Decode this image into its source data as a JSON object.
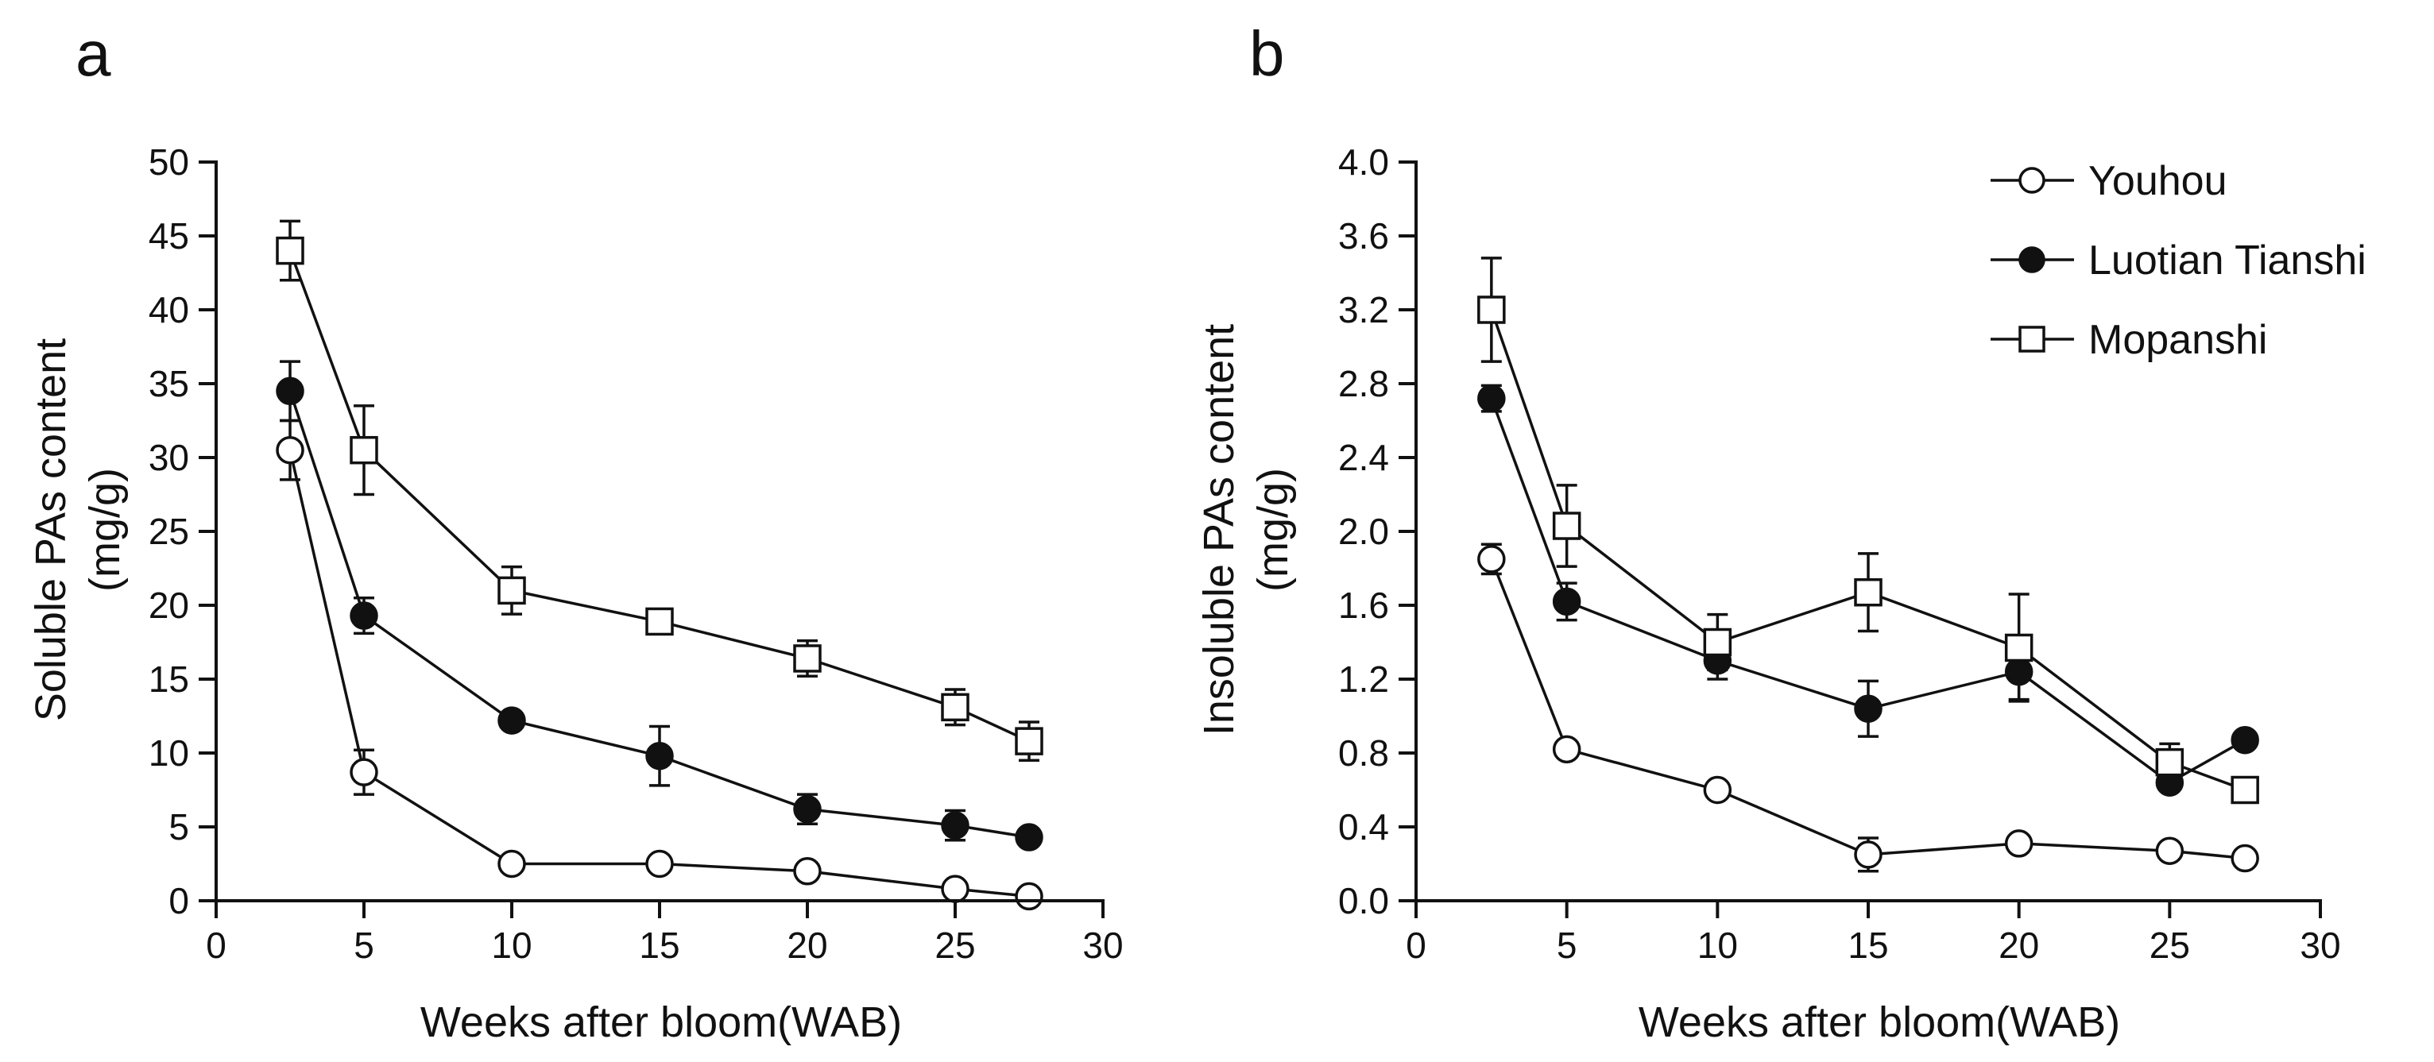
{
  "chart_data": [
    {
      "panel_label": "a",
      "type": "line",
      "xlabel": "Weeks after bloom(WAB)",
      "ylabel_lines": [
        "Soluble PAs content",
        "(mg/g)"
      ],
      "xlim": [
        0,
        30
      ],
      "ylim": [
        0,
        50
      ],
      "x_ticks": [
        0,
        5,
        10,
        15,
        20,
        25,
        30
      ],
      "y_ticks": [
        0,
        5,
        10,
        15,
        20,
        25,
        30,
        35,
        40,
        45,
        50
      ],
      "y_decimals": 0,
      "x": [
        2.5,
        5,
        10,
        15,
        20,
        25,
        27.5
      ],
      "series": [
        {
          "name": "Youhou",
          "marker": "open-circle",
          "values": [
            30.5,
            8.7,
            2.5,
            2.5,
            2.0,
            0.8,
            0.3
          ],
          "errors": [
            2.0,
            1.5,
            0.3,
            0.3,
            0.3,
            0.3,
            0.2
          ]
        },
        {
          "name": "Luotian Tianshi",
          "marker": "filled-circle",
          "values": [
            34.5,
            19.3,
            12.2,
            9.8,
            6.2,
            5.1,
            4.3
          ],
          "errors": [
            2.0,
            1.2,
            0.5,
            2.0,
            1.0,
            1.0,
            0.3
          ]
        },
        {
          "name": "Mopanshi",
          "marker": "open-square",
          "values": [
            44.0,
            30.5,
            21.0,
            18.9,
            16.4,
            13.1,
            10.8
          ],
          "errors": [
            2.0,
            3.0,
            1.6,
            0.6,
            1.2,
            1.2,
            1.3
          ]
        }
      ]
    },
    {
      "panel_label": "b",
      "type": "line",
      "xlabel": "Weeks after bloom(WAB)",
      "ylabel_lines": [
        "Insoluble PAs content",
        "(mg/g)"
      ],
      "xlim": [
        0,
        30
      ],
      "ylim": [
        0,
        4.0
      ],
      "x_ticks": [
        0,
        5,
        10,
        15,
        20,
        25,
        30
      ],
      "y_ticks": [
        0,
        0.4,
        0.8,
        1.2,
        1.6,
        2.0,
        2.4,
        2.8,
        3.2,
        3.6,
        4.0
      ],
      "y_decimals": 1,
      "x": [
        2.5,
        5,
        10,
        15,
        20,
        25,
        27.5
      ],
      "series": [
        {
          "name": "Youhou",
          "marker": "open-circle",
          "values": [
            1.85,
            0.82,
            0.6,
            0.25,
            0.31,
            0.27,
            0.23
          ],
          "errors": [
            0.08,
            0.03,
            0.03,
            0.09,
            0.03,
            0.02,
            0.02
          ]
        },
        {
          "name": "Luotian Tianshi",
          "marker": "filled-circle",
          "values": [
            2.72,
            1.62,
            1.3,
            1.04,
            1.24,
            0.64,
            0.87
          ],
          "errors": [
            0.07,
            0.1,
            0.1,
            0.15,
            0.15,
            0.03,
            0.03
          ]
        },
        {
          "name": "Mopanshi",
          "marker": "open-square",
          "values": [
            3.2,
            2.03,
            1.4,
            1.67,
            1.37,
            0.75,
            0.6
          ],
          "errors": [
            0.28,
            0.22,
            0.15,
            0.21,
            0.29,
            0.1,
            0.02
          ]
        }
      ],
      "legend": {
        "position": "top-right",
        "entries": [
          "Youhou",
          "Luotian Tianshi",
          "Mopanshi"
        ]
      }
    }
  ]
}
